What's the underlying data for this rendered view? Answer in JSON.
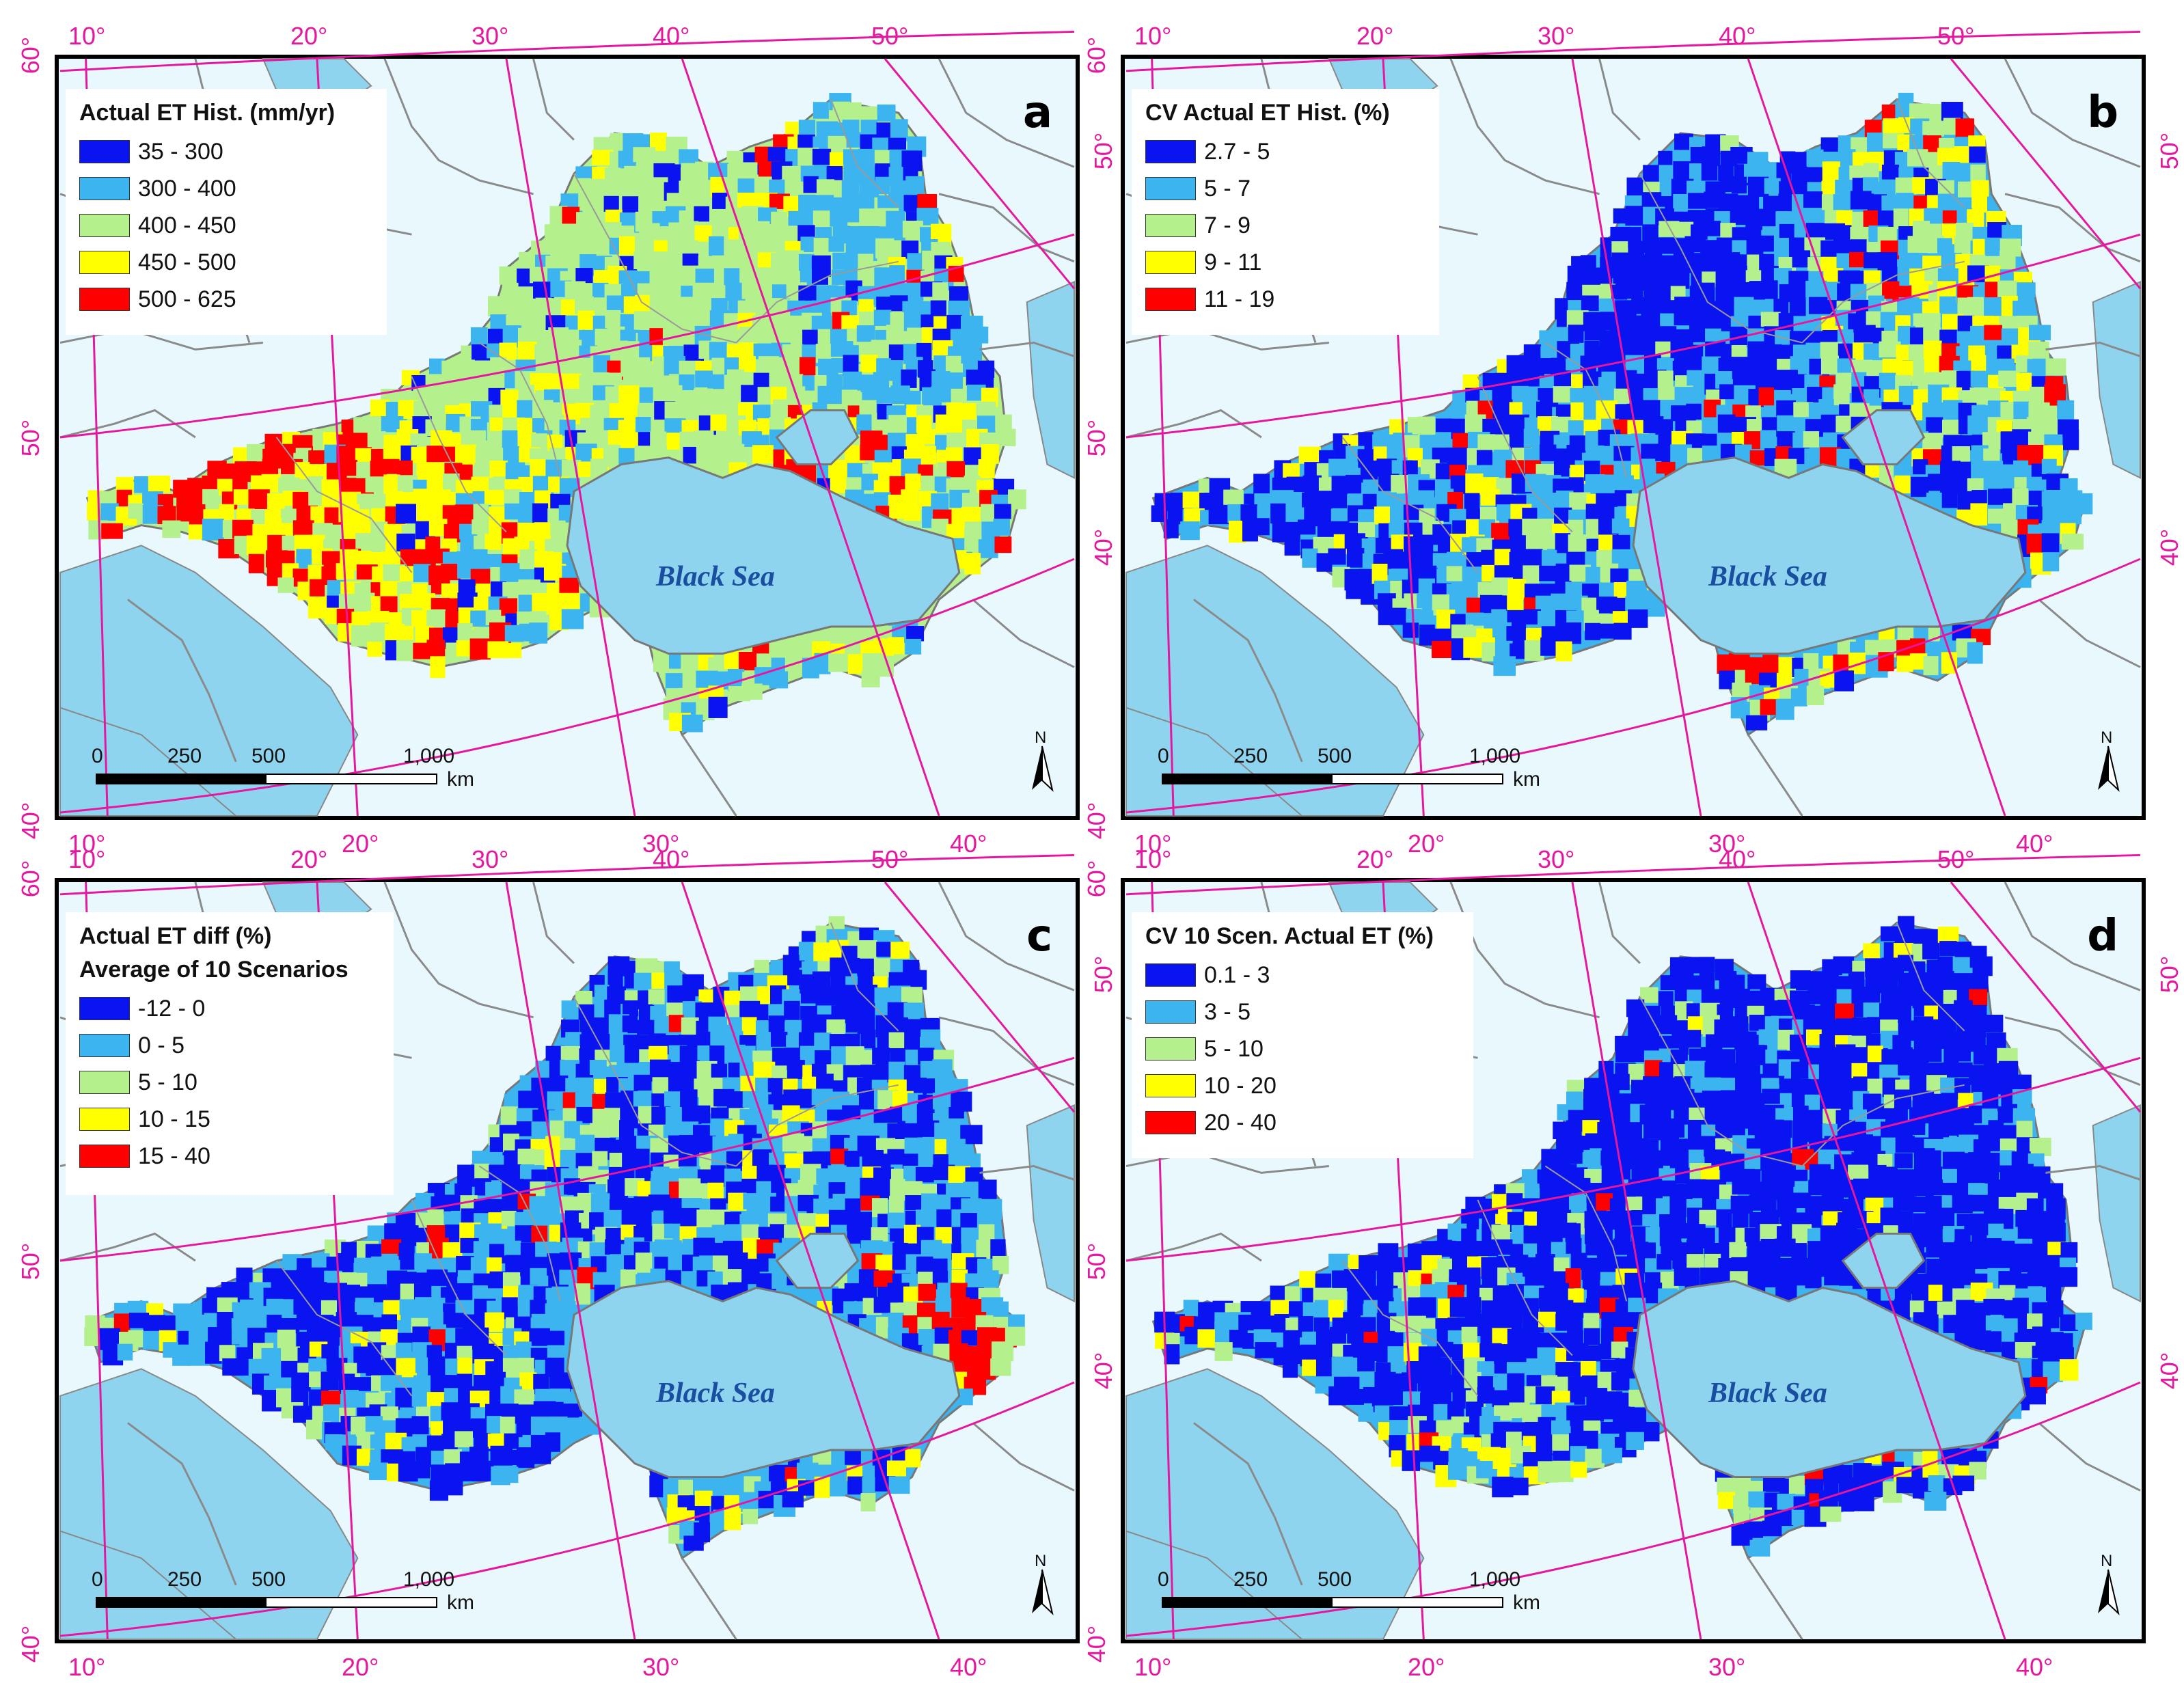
{
  "sea_label": "Black Sea",
  "scale_bar": {
    "ticks": [
      "0",
      "250",
      "500",
      "1,000"
    ],
    "unit": "km"
  },
  "north_arrow": "N",
  "colors": {
    "class1": "#0a14f0",
    "class2": "#3cb4f0",
    "class3": "#b4f08c",
    "class4": "#ffff00",
    "class5": "#ff0000",
    "sea": "#8fd4ee",
    "land_outside": "#e8f8fd",
    "graticule": "#e6179f"
  },
  "graticule": {
    "top": [
      "10°",
      "20°",
      "30°",
      "40°",
      "50°"
    ],
    "bottom": [
      "10°",
      "20°",
      "30°",
      "40°"
    ],
    "left": [
      "60°",
      "50°",
      "40°"
    ],
    "right": [
      "50°",
      "40°"
    ]
  },
  "panels": [
    {
      "letter": "a",
      "legend_title": "Actual ET Hist. (mm/yr)",
      "legend_subtitle": "",
      "classes": [
        "35 - 300",
        "300 - 400",
        "400 - 450",
        "450 - 500",
        "500 - 625"
      ]
    },
    {
      "letter": "b",
      "legend_title": "CV Actual ET Hist. (%)",
      "legend_subtitle": "",
      "classes": [
        "2.7 - 5",
        "5 - 7",
        "7 - 9",
        "9 - 11",
        "11 - 19"
      ]
    },
    {
      "letter": "c",
      "legend_title": "Actual ET diff (%)",
      "legend_subtitle": "Average of 10 Scenarios",
      "classes": [
        "-12 - 0",
        "0 - 5",
        "5 - 10",
        "10 - 15",
        "15 - 40"
      ]
    },
    {
      "letter": "d",
      "legend_title": "CV 10 Scen. Actual ET (%)",
      "legend_subtitle": "",
      "classes": [
        "0.1 - 3",
        "3 - 5",
        "5 - 10",
        "10 - 20",
        "20 - 40"
      ]
    }
  ]
}
